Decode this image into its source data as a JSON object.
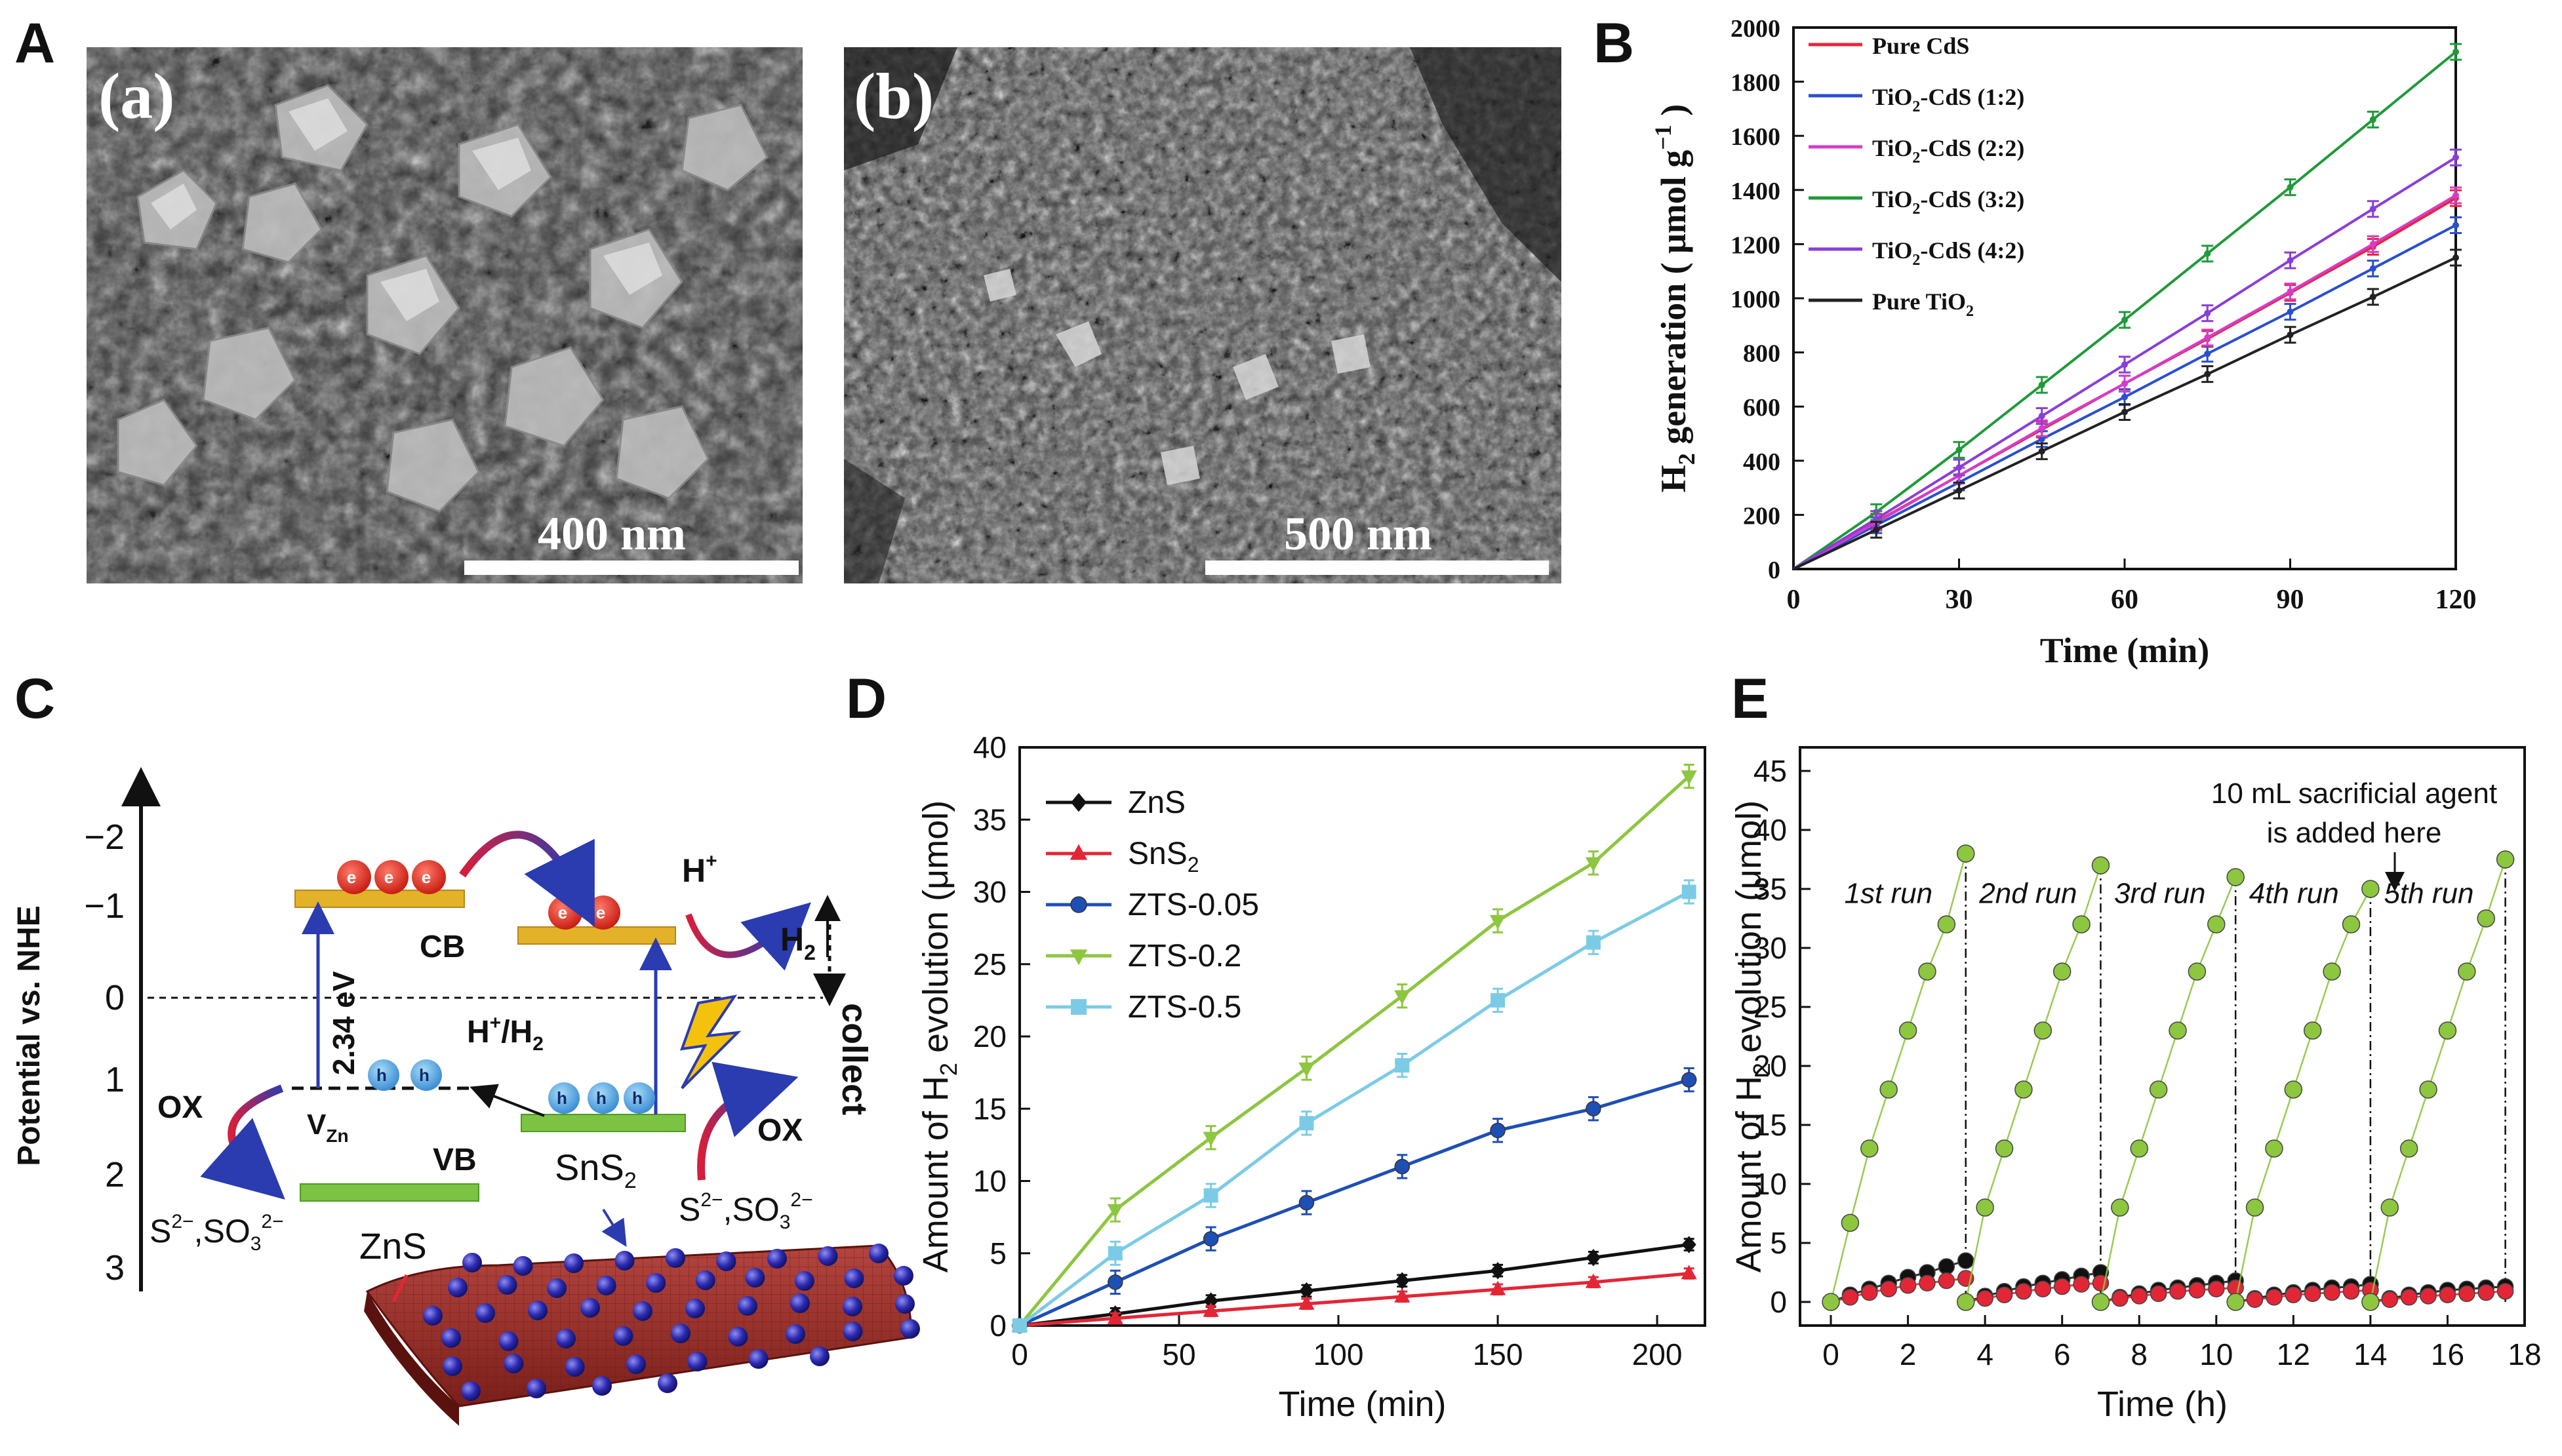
{
  "panels": {
    "A": {
      "letter": "A",
      "sub_a": {
        "label": "(a)",
        "scale_text": "400 nm"
      },
      "sub_b": {
        "label": "(b)",
        "scale_text": "500 nm"
      }
    },
    "C": {
      "letter": "C",
      "y_axis_label": "Potential vs. NHE",
      "y_ticks": [
        "−2",
        "−1",
        "0",
        "1",
        "2",
        "3"
      ],
      "gap_label": "2.34 eV",
      "cb_label": "CB",
      "vb_label": "VB",
      "hplus": "H",
      "h2_label": "H",
      "hh2": "H",
      "hh2_mid": "/H",
      "vzn": "V",
      "vzn_sub": "Zn",
      "ox": "OX",
      "sulfide": "S",
      "sulfite": ",SO",
      "zns": "ZnS",
      "sns2": "SnS",
      "collect": "collect",
      "electron": "e",
      "hole": "h"
    }
  },
  "chart_data": [
    {
      "id": "B",
      "panel_letter": "B",
      "type": "line",
      "title": "",
      "xlabel": "Time (min)",
      "ylabel": "H2 generation ( μmol g−1 )",
      "x": [
        0,
        15,
        30,
        45,
        60,
        75,
        90,
        105,
        120
      ],
      "xlim": [
        0,
        120
      ],
      "ylim": [
        0,
        2000
      ],
      "xticks": [
        0,
        30,
        60,
        90,
        120
      ],
      "yticks": [
        0,
        200,
        400,
        600,
        800,
        1000,
        1200,
        1400,
        1600,
        1800,
        2000
      ],
      "series": [
        {
          "name": "Pure CdS",
          "color": "#e8253a",
          "values": [
            0,
            175,
            345,
            515,
            685,
            850,
            1020,
            1190,
            1370
          ]
        },
        {
          "name": "TiO2-CdS (1:2)",
          "color": "#2a4fd0",
          "values": [
            0,
            162,
            320,
            480,
            635,
            795,
            950,
            1110,
            1270
          ]
        },
        {
          "name": "TiO2-CdS (2:2)",
          "color": "#d63cc8",
          "values": [
            0,
            172,
            345,
            520,
            685,
            855,
            1025,
            1200,
            1380
          ]
        },
        {
          "name": "TiO2-CdS (3:2)",
          "color": "#1f9a3a",
          "values": [
            0,
            210,
            440,
            680,
            920,
            1165,
            1410,
            1660,
            1910
          ]
        },
        {
          "name": "TiO2-CdS (4:2)",
          "color": "#8a3ed8",
          "values": [
            0,
            185,
            375,
            565,
            755,
            945,
            1140,
            1330,
            1520
          ]
        },
        {
          "name": "Pure TiO2",
          "color": "#222222",
          "values": [
            0,
            145,
            290,
            435,
            580,
            720,
            865,
            1005,
            1150
          ]
        }
      ]
    },
    {
      "id": "D",
      "panel_letter": "D",
      "type": "line",
      "title": "",
      "xlabel": "Time (min)",
      "ylabel": "Amount of H2 evolution (μmol)",
      "x": [
        0,
        30,
        60,
        90,
        120,
        150,
        180,
        210
      ],
      "xlim": [
        0,
        215
      ],
      "ylim": [
        0,
        40
      ],
      "xticks": [
        0,
        50,
        100,
        150,
        200
      ],
      "yticks": [
        0,
        5,
        10,
        15,
        20,
        25,
        30,
        35,
        40
      ],
      "series": [
        {
          "name": "ZnS",
          "color": "#111111",
          "marker": "diamond",
          "values": [
            0,
            0.8,
            1.7,
            2.4,
            3.1,
            3.8,
            4.7,
            5.6
          ]
        },
        {
          "name": "SnS2",
          "color": "#e32636",
          "marker": "triangle-up",
          "values": [
            0,
            0.5,
            1.0,
            1.5,
            2.0,
            2.5,
            3.0,
            3.6
          ]
        },
        {
          "name": "ZTS-0.05",
          "color": "#1e4fb5",
          "marker": "circle",
          "values": [
            0,
            3.0,
            6.0,
            8.5,
            11.0,
            13.5,
            15.0,
            17.0
          ]
        },
        {
          "name": "ZTS-0.2",
          "color": "#8dc63f",
          "marker": "triangle-down",
          "values": [
            0,
            8.0,
            13.0,
            17.8,
            22.8,
            28.0,
            32.0,
            38.0
          ]
        },
        {
          "name": "ZTS-0.5",
          "color": "#7ccbe6",
          "marker": "square",
          "values": [
            0,
            5.0,
            9.0,
            14.0,
            18.0,
            22.5,
            26.5,
            30.0
          ]
        }
      ]
    },
    {
      "id": "E",
      "panel_letter": "E",
      "type": "scatter",
      "title": "",
      "xlabel": "Time (h)",
      "ylabel": "Amount of H2 evolution (μmol)",
      "xlim": [
        -0.8,
        18
      ],
      "ylim": [
        -2,
        47
      ],
      "xticks": [
        0,
        2,
        4,
        6,
        8,
        10,
        12,
        14,
        16,
        18
      ],
      "yticks": [
        0,
        5,
        10,
        15,
        20,
        25,
        30,
        35,
        40,
        45
      ],
      "annotation": [
        "10 mL sacrificial agent",
        "is added here"
      ],
      "run_labels": [
        "1st run",
        "2nd run",
        "3rd run",
        "4th run",
        "5th run"
      ],
      "run_boundaries": [
        3.5,
        7.0,
        10.5,
        14.0,
        17.5
      ],
      "run_offsets": [
        0,
        3.5,
        7.0,
        10.5,
        14.0
      ],
      "run_t": [
        0,
        0.5,
        1.0,
        1.5,
        2.0,
        2.5,
        3.0,
        3.5
      ],
      "green_runs": [
        [
          0,
          6.7,
          13.0,
          18.0,
          23.0,
          28.0,
          32.0,
          38.0
        ],
        [
          0,
          8.0,
          13.0,
          18.0,
          23.0,
          28.0,
          32.0,
          37.0
        ],
        [
          0,
          8.0,
          13.0,
          18.0,
          23.0,
          28.0,
          32.0,
          36.0
        ],
        [
          0,
          8.0,
          13.0,
          18.0,
          23.0,
          28.0,
          32.0,
          35.0
        ],
        [
          0,
          8.0,
          13.0,
          18.0,
          23.0,
          28.0,
          32.5,
          37.5
        ]
      ],
      "black_runs": [
        [
          0,
          0.6,
          1.1,
          1.6,
          2.1,
          2.5,
          3.0,
          3.5
        ],
        [
          0,
          0.5,
          0.9,
          1.3,
          1.6,
          1.9,
          2.2,
          2.5
        ],
        [
          0,
          0.4,
          0.7,
          1.0,
          1.2,
          1.4,
          1.6,
          1.8
        ],
        [
          0,
          0.3,
          0.6,
          0.8,
          1.0,
          1.2,
          1.3,
          1.5
        ],
        [
          0,
          0.3,
          0.6,
          0.8,
          1.0,
          1.1,
          1.2,
          1.3
        ]
      ],
      "red_runs": [
        [
          0,
          0.4,
          0.8,
          1.1,
          1.4,
          1.6,
          1.8,
          2.0
        ],
        [
          0,
          0.3,
          0.6,
          0.9,
          1.1,
          1.3,
          1.5,
          1.6
        ],
        [
          0,
          0.3,
          0.5,
          0.7,
          0.9,
          1.0,
          1.1,
          1.2
        ],
        [
          0,
          0.2,
          0.4,
          0.6,
          0.7,
          0.8,
          0.9,
          1.0
        ],
        [
          0,
          0.2,
          0.4,
          0.5,
          0.6,
          0.7,
          0.8,
          0.9
        ]
      ],
      "colors": {
        "green": "#8dc63f",
        "black": "#111111",
        "red": "#e32636"
      }
    }
  ]
}
